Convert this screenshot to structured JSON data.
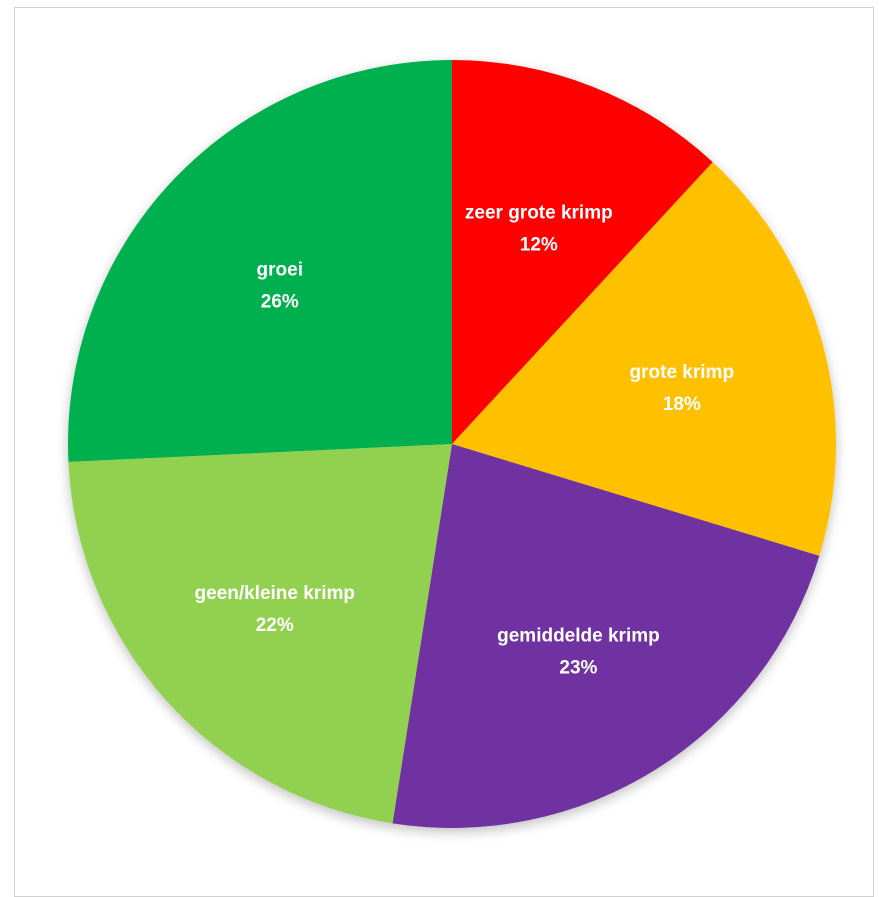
{
  "chart_data": {
    "type": "pie",
    "title": "",
    "slices": [
      {
        "label": "zeer grote krimp",
        "value": 12,
        "value_label": "12%",
        "color": "#ff0000"
      },
      {
        "label": "grote krimp",
        "value": 18,
        "value_label": "18%",
        "color": "#ffc000"
      },
      {
        "label": "gemiddelde krimp",
        "value": 23,
        "value_label": "23%",
        "color": "#7030a0"
      },
      {
        "label": "geen/kleine krimp",
        "value": 22,
        "value_label": "22%",
        "color": "#92d050"
      },
      {
        "label": "groei",
        "value": 26,
        "value_label": "26%",
        "color": "#00b050"
      }
    ],
    "start": "12 o'clock",
    "direction": "clockwise",
    "legend": "none",
    "data_labels": "inside"
  }
}
